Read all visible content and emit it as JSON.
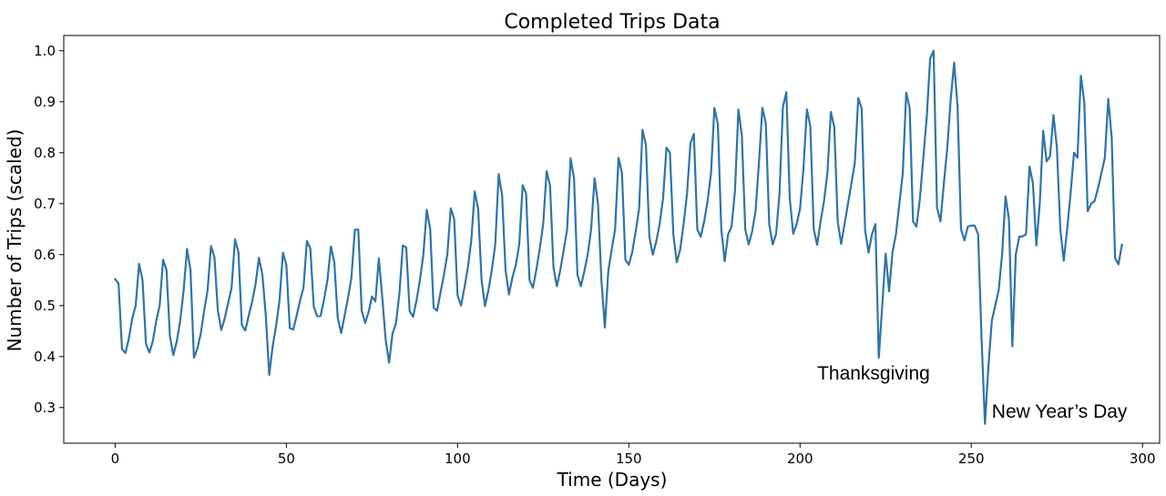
{
  "chart_data": {
    "type": "line",
    "title": "Completed Trips Data",
    "xlabel": "Time (Days)",
    "ylabel": "Number of Trips (scaled)",
    "xlim": [
      -15,
      305
    ],
    "ylim": [
      0.23,
      1.03
    ],
    "x_ticks": [
      0,
      50,
      100,
      150,
      200,
      250,
      300
    ],
    "x_tick_labels": [
      "0",
      "50",
      "100",
      "150",
      "200",
      "250",
      "300"
    ],
    "y_ticks": [
      0.3,
      0.4,
      0.5,
      0.6,
      0.7,
      0.8,
      0.9,
      1.0
    ],
    "y_tick_labels": [
      "0.3",
      "0.4",
      "0.5",
      "0.6",
      "0.7",
      "0.8",
      "0.9",
      "1.0"
    ],
    "grid": false,
    "series": [
      {
        "color": "#2f74a8",
        "x_start": 0,
        "x_step": 1,
        "values": [
          0.552,
          0.543,
          0.415,
          0.407,
          0.435,
          0.475,
          0.5,
          0.582,
          0.55,
          0.425,
          0.408,
          0.43,
          0.47,
          0.5,
          0.59,
          0.57,
          0.44,
          0.403,
          0.43,
          0.47,
          0.53,
          0.611,
          0.57,
          0.398,
          0.415,
          0.445,
          0.49,
          0.53,
          0.617,
          0.595,
          0.49,
          0.452,
          0.475,
          0.505,
          0.535,
          0.63,
          0.605,
          0.462,
          0.451,
          0.48,
          0.508,
          0.542,
          0.594,
          0.56,
          0.48,
          0.364,
          0.42,
          0.46,
          0.51,
          0.604,
          0.58,
          0.456,
          0.453,
          0.48,
          0.51,
          0.535,
          0.627,
          0.612,
          0.498,
          0.479,
          0.48,
          0.512,
          0.55,
          0.616,
          0.585,
          0.476,
          0.446,
          0.48,
          0.515,
          0.555,
          0.649,
          0.649,
          0.49,
          0.466,
          0.487,
          0.518,
          0.508,
          0.593,
          0.517,
          0.433,
          0.388,
          0.445,
          0.465,
          0.523,
          0.618,
          0.614,
          0.489,
          0.478,
          0.51,
          0.55,
          0.6,
          0.688,
          0.65,
          0.496,
          0.49,
          0.525,
          0.56,
          0.6,
          0.691,
          0.67,
          0.52,
          0.5,
          0.535,
          0.575,
          0.628,
          0.724,
          0.69,
          0.55,
          0.499,
          0.53,
          0.57,
          0.62,
          0.758,
          0.716,
          0.57,
          0.522,
          0.555,
          0.58,
          0.62,
          0.736,
          0.72,
          0.55,
          0.535,
          0.57,
          0.612,
          0.66,
          0.764,
          0.735,
          0.575,
          0.538,
          0.57,
          0.61,
          0.65,
          0.789,
          0.75,
          0.56,
          0.538,
          0.567,
          0.6,
          0.65,
          0.75,
          0.7,
          0.55,
          0.457,
          0.567,
          0.61,
          0.65,
          0.79,
          0.76,
          0.59,
          0.58,
          0.605,
          0.645,
          0.69,
          0.845,
          0.815,
          0.635,
          0.6,
          0.625,
          0.66,
          0.71,
          0.81,
          0.8,
          0.64,
          0.585,
          0.61,
          0.66,
          0.72,
          0.818,
          0.837,
          0.65,
          0.635,
          0.665,
          0.705,
          0.76,
          0.888,
          0.856,
          0.65,
          0.587,
          0.64,
          0.655,
          0.725,
          0.885,
          0.834,
          0.65,
          0.62,
          0.645,
          0.685,
          0.78,
          0.888,
          0.858,
          0.66,
          0.62,
          0.64,
          0.72,
          0.89,
          0.919,
          0.71,
          0.641,
          0.66,
          0.69,
          0.77,
          0.885,
          0.852,
          0.65,
          0.619,
          0.665,
          0.705,
          0.76,
          0.88,
          0.85,
          0.665,
          0.621,
          0.66,
          0.7,
          0.74,
          0.78,
          0.907,
          0.887,
          0.648,
          0.604,
          0.64,
          0.66,
          0.398,
          0.5,
          0.602,
          0.528,
          0.605,
          0.64,
          0.7,
          0.76,
          0.918,
          0.888,
          0.665,
          0.655,
          0.71,
          0.79,
          0.87,
          0.985,
          1.0,
          0.692,
          0.665,
          0.74,
          0.81,
          0.905,
          0.977,
          0.89,
          0.65,
          0.628,
          0.655,
          0.657,
          0.657,
          0.64,
          0.436,
          0.268,
          0.38,
          0.47,
          0.5,
          0.53,
          0.6,
          0.714,
          0.67,
          0.42,
          0.6,
          0.635,
          0.636,
          0.64,
          0.773,
          0.74,
          0.618,
          0.7,
          0.843,
          0.783,
          0.793,
          0.874,
          0.81,
          0.65,
          0.588,
          0.65,
          0.72,
          0.8,
          0.79,
          0.951,
          0.9,
          0.685,
          0.7,
          0.705,
          0.73,
          0.76,
          0.79,
          0.906,
          0.83,
          0.593,
          0.581,
          0.62
        ]
      }
    ],
    "annotations": [
      {
        "text": "Thanksgiving",
        "x": 205,
        "y": 0.355
      },
      {
        "text": "New Year’s Day",
        "x": 256,
        "y": 0.28
      }
    ]
  }
}
